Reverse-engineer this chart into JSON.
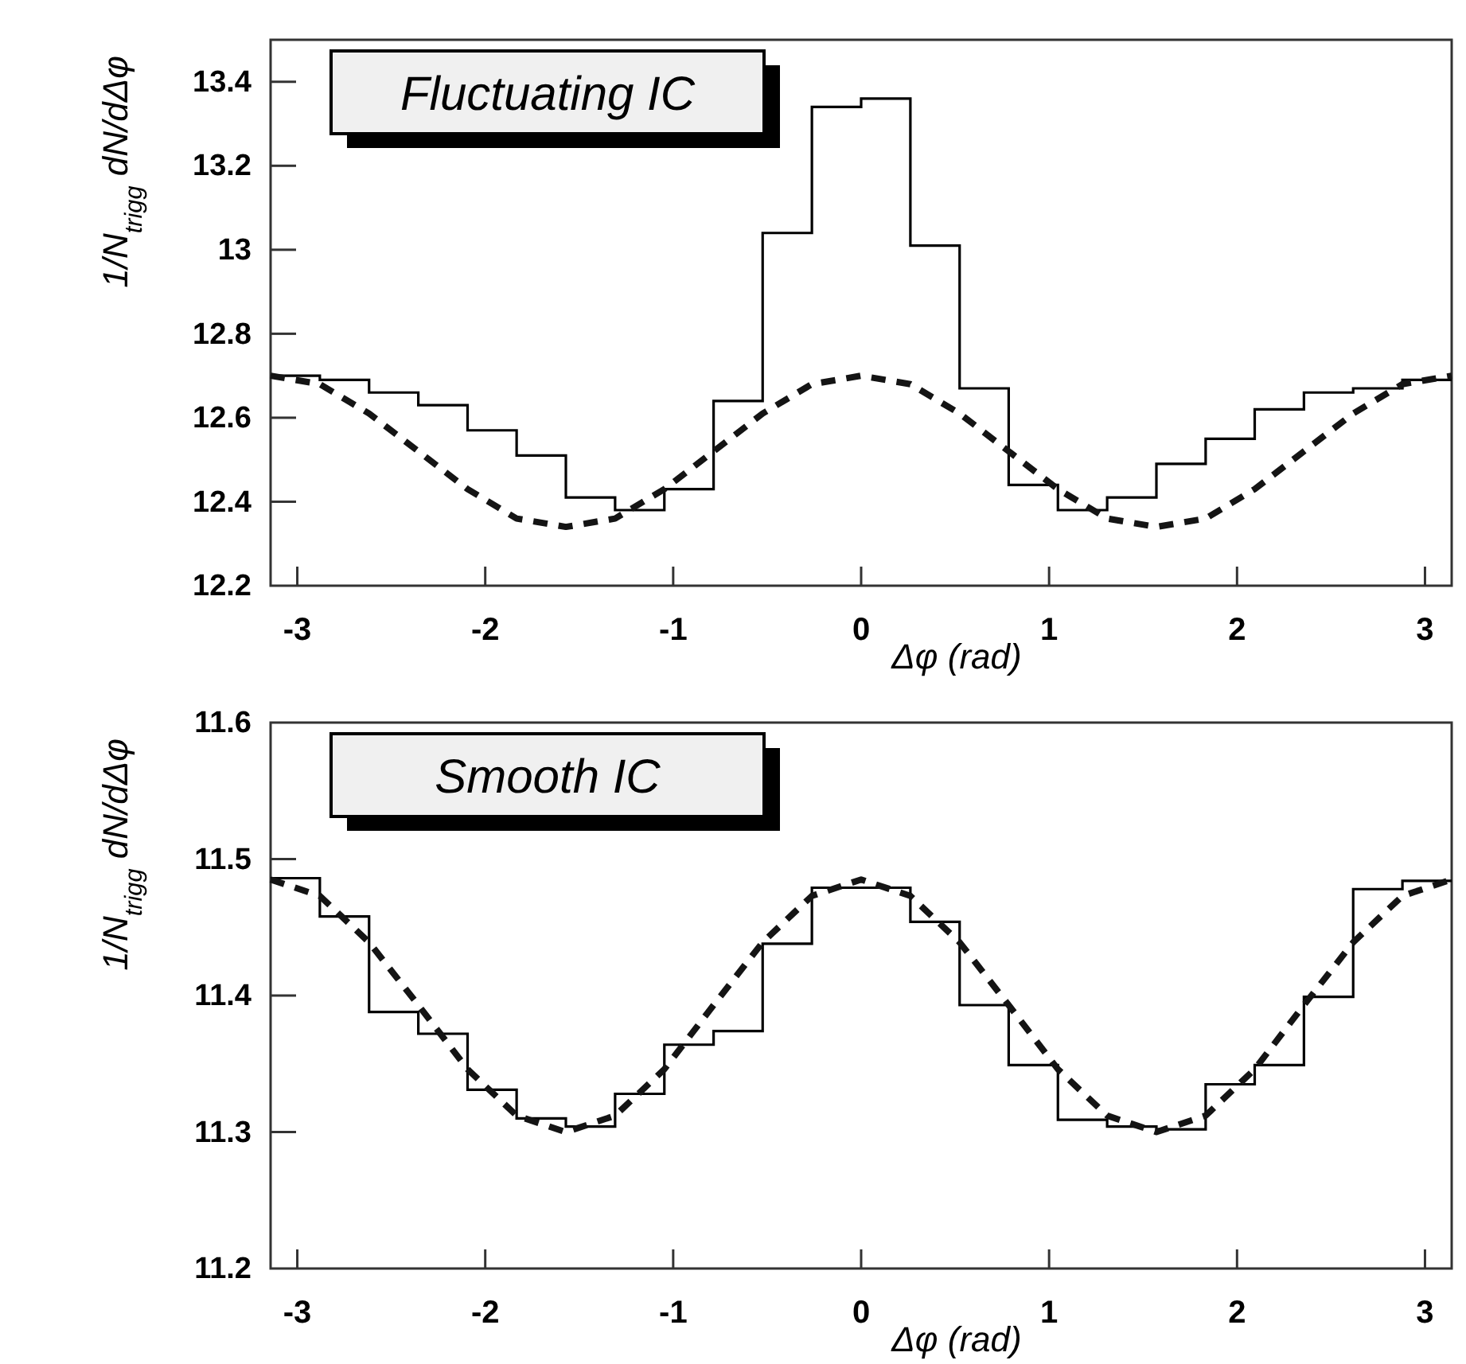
{
  "chart_data": [
    {
      "type": "histogram",
      "title": "Fluctuating IC",
      "xlabel": "Δφ (rad)",
      "ylabel": "1/N$_{trigg}$ dN/dΔφ",
      "xlim": [
        -3.142,
        3.142
      ],
      "xticks": [
        -3,
        -2,
        -1,
        0,
        1,
        2,
        3
      ],
      "ylim": [
        12.2,
        13.5
      ],
      "yticks": [
        12.2,
        12.4,
        12.6,
        12.8,
        13,
        13.2,
        13.4
      ],
      "series": [
        {
          "color": "#000000",
          "bins": [
            -3.142,
            -2.88,
            -2.618,
            -2.356,
            -2.094,
            -1.833,
            -1.571,
            -1.309,
            -1.047,
            -0.785,
            -0.524,
            -0.262,
            0,
            0.262,
            0.524,
            0.785,
            1.047,
            1.309,
            1.571,
            1.833,
            2.094,
            2.356,
            2.618,
            2.88,
            3.142
          ],
          "values": [
            12.7,
            12.69,
            12.66,
            12.63,
            12.57,
            12.51,
            12.41,
            12.38,
            12.43,
            12.64,
            13.04,
            13.34,
            13.36,
            13.01,
            12.67,
            12.44,
            12.38,
            12.41,
            12.49,
            12.55,
            12.62,
            12.66,
            12.67,
            12.69
          ]
        },
        {
          "type": "line",
          "color": "#141414",
          "line_style": "dashed",
          "x": [
            -3.142,
            -2.88,
            -2.618,
            -2.356,
            -2.094,
            -1.833,
            -1.571,
            -1.309,
            -1.047,
            -0.785,
            -0.524,
            -0.262,
            0,
            0.262,
            0.524,
            0.785,
            1.047,
            1.309,
            1.571,
            1.833,
            2.094,
            2.356,
            2.618,
            2.88,
            3.142
          ],
          "values": [
            12.7,
            12.68,
            12.61,
            12.52,
            12.43,
            12.36,
            12.34,
            12.36,
            12.43,
            12.52,
            12.61,
            12.68,
            12.7,
            12.68,
            12.61,
            12.52,
            12.43,
            12.36,
            12.34,
            12.36,
            12.43,
            12.52,
            12.61,
            12.68,
            12.7
          ]
        }
      ]
    },
    {
      "type": "histogram",
      "title": "Smooth IC",
      "xlabel": "Δφ (rad)",
      "ylabel": "1/N$_{trigg}$ dN/dΔφ",
      "xlim": [
        -3.142,
        3.142
      ],
      "xticks": [
        -3,
        -2,
        -1,
        0,
        1,
        2,
        3
      ],
      "ylim": [
        11.2,
        11.6
      ],
      "yticks": [
        11.2,
        11.3,
        11.4,
        11.5,
        11.6
      ],
      "series": [
        {
          "color": "#000000",
          "bins": [
            -3.142,
            -2.88,
            -2.618,
            -2.356,
            -2.094,
            -1.833,
            -1.571,
            -1.309,
            -1.047,
            -0.785,
            -0.524,
            -0.262,
            0,
            0.262,
            0.524,
            0.785,
            1.047,
            1.309,
            1.571,
            1.833,
            2.094,
            2.356,
            2.618,
            2.88,
            3.142
          ],
          "values": [
            11.486,
            11.458,
            11.388,
            11.372,
            11.331,
            11.31,
            11.304,
            11.328,
            11.364,
            11.374,
            11.438,
            11.479,
            11.479,
            11.454,
            11.393,
            11.349,
            11.309,
            11.304,
            11.302,
            11.335,
            11.349,
            11.399,
            11.478,
            11.484
          ]
        },
        {
          "type": "line",
          "color": "#141414",
          "line_style": "dashed",
          "x": [
            -3.142,
            -2.88,
            -2.618,
            -2.356,
            -2.094,
            -1.833,
            -1.571,
            -1.309,
            -1.047,
            -0.785,
            -0.524,
            -0.262,
            0,
            0.262,
            0.524,
            0.785,
            1.047,
            1.309,
            1.571,
            1.833,
            2.094,
            2.356,
            2.618,
            2.88,
            3.142
          ],
          "values": [
            11.485,
            11.473,
            11.439,
            11.393,
            11.346,
            11.312,
            11.3,
            11.312,
            11.346,
            11.393,
            11.439,
            11.473,
            11.485,
            11.473,
            11.439,
            11.393,
            11.346,
            11.312,
            11.3,
            11.312,
            11.346,
            11.393,
            11.439,
            11.473,
            11.485
          ]
        }
      ]
    }
  ]
}
